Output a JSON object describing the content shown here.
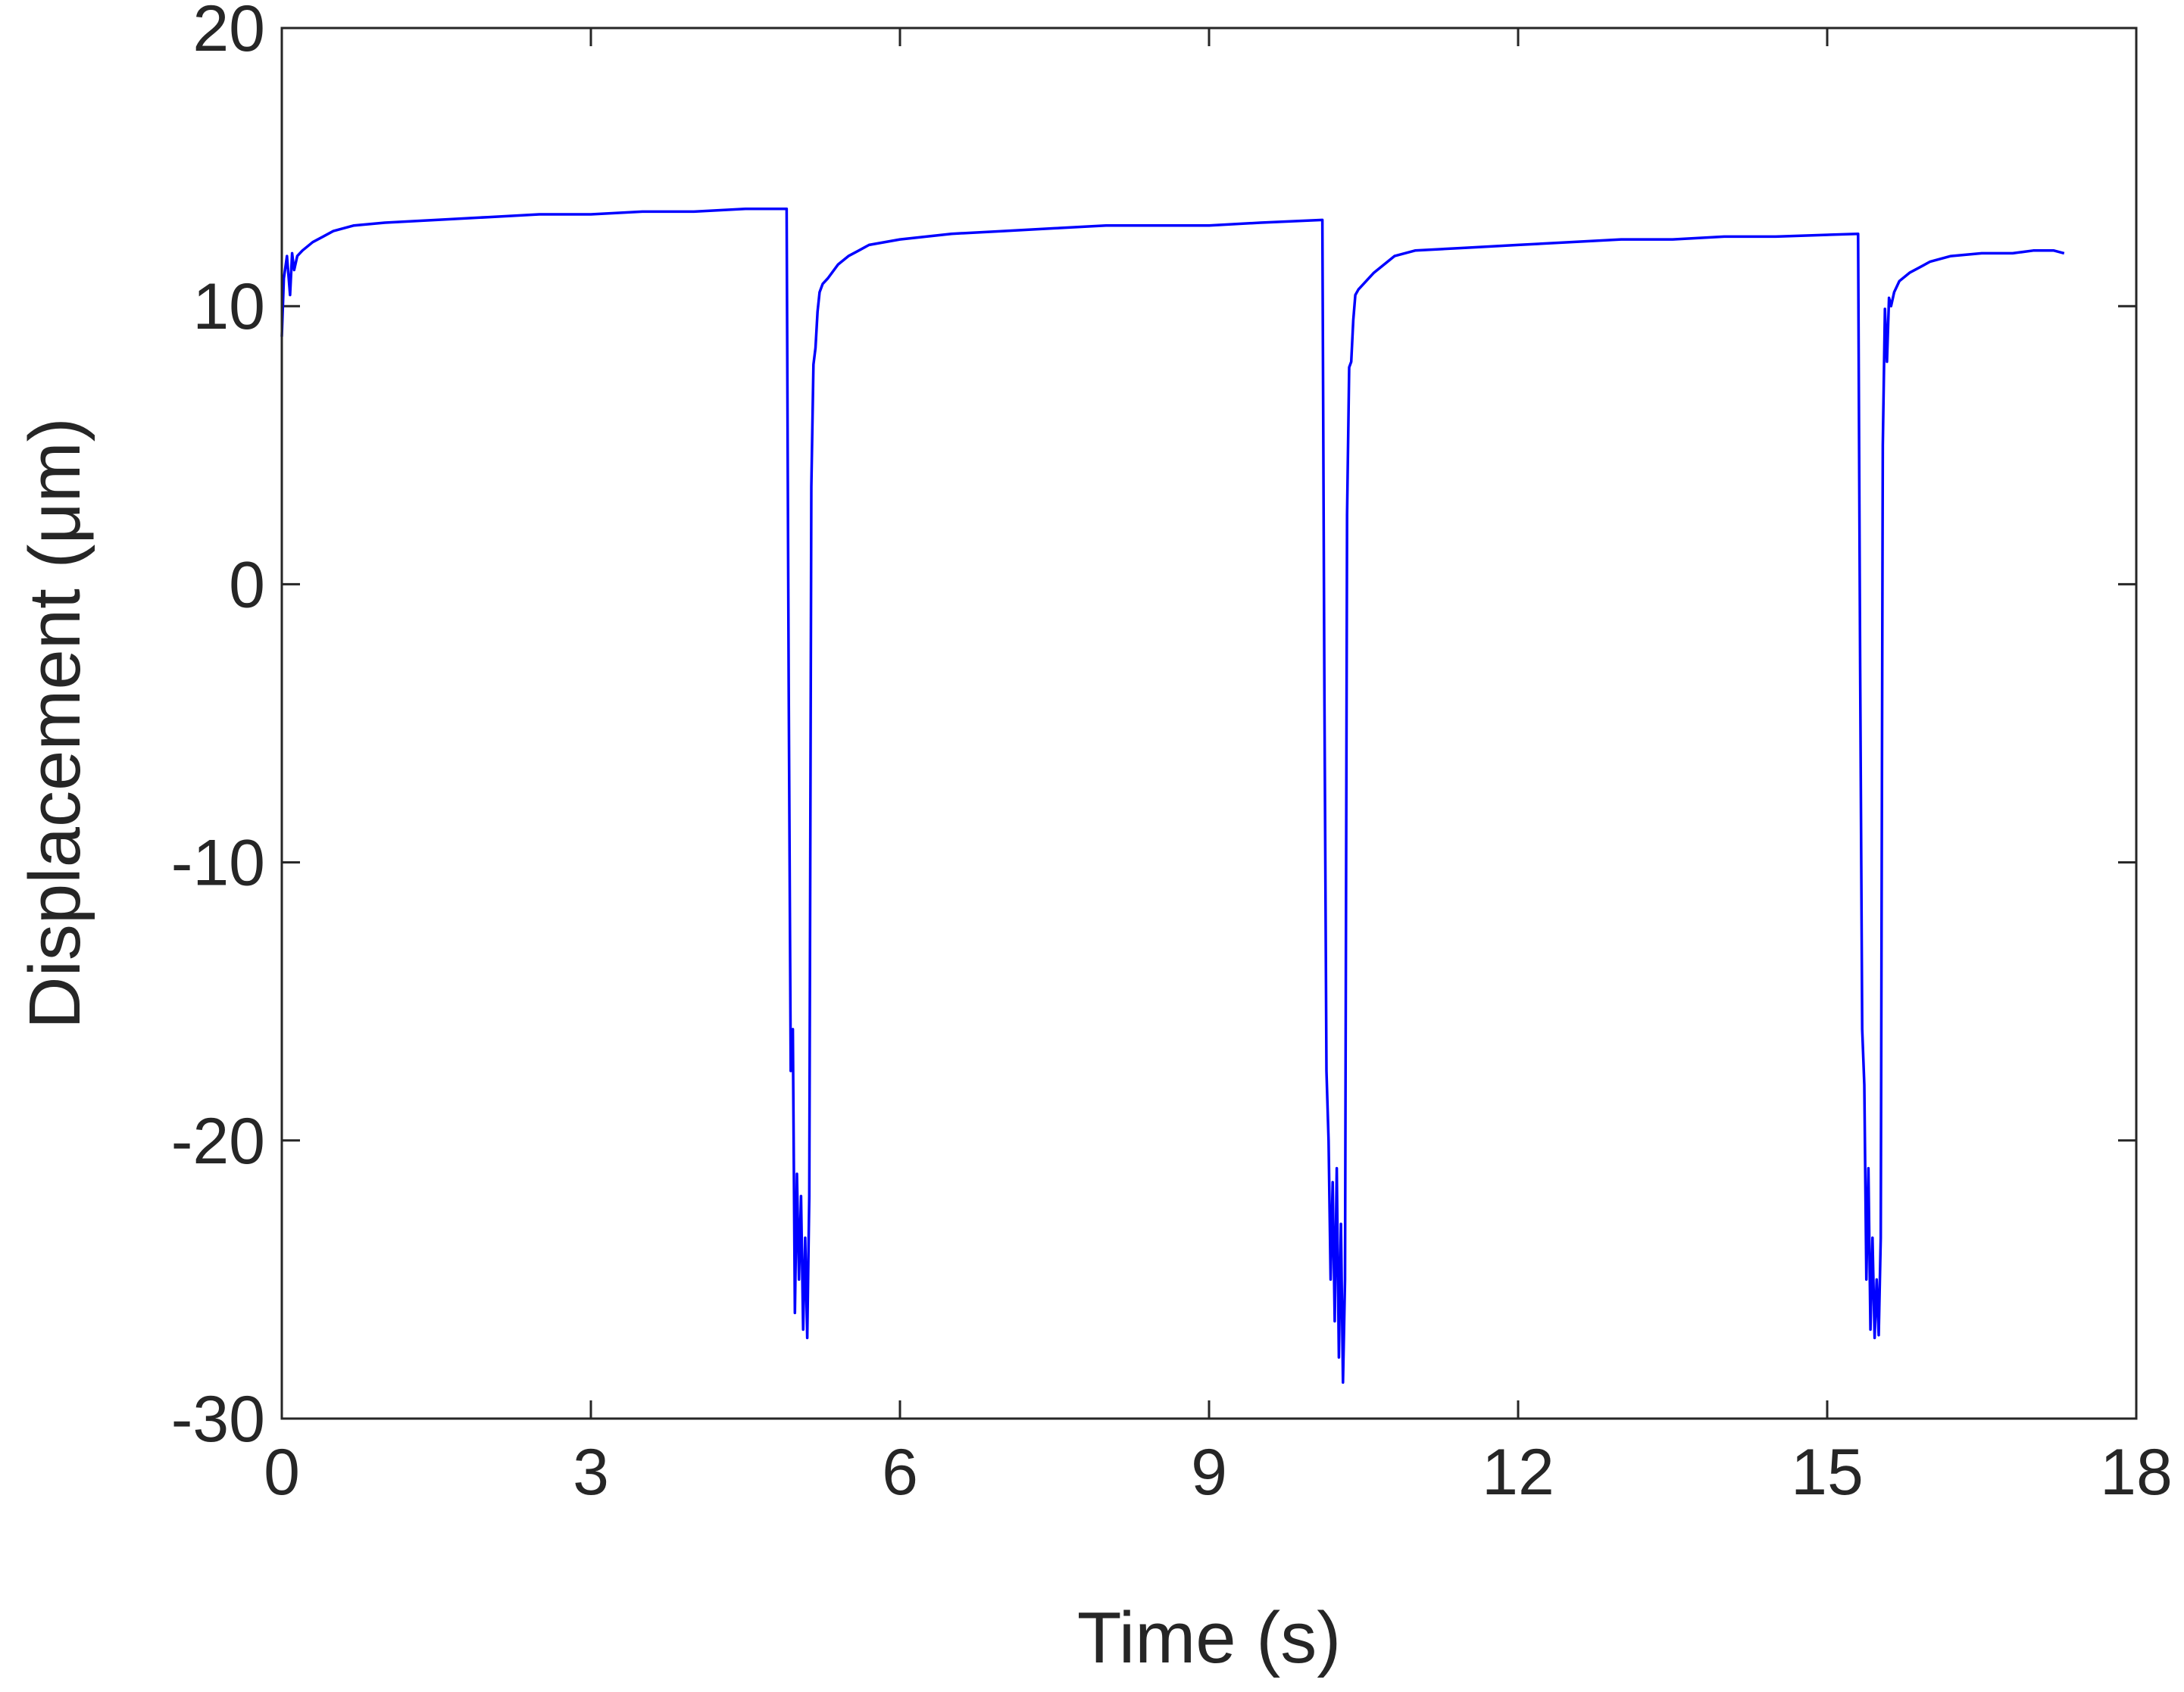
{
  "chart_data": {
    "type": "line",
    "title": "",
    "xlabel": "Time (s)",
    "ylabel": "Displacement (μm)",
    "xlim": [
      0,
      18
    ],
    "ylim": [
      -30,
      20
    ],
    "xticks": [
      0,
      3,
      6,
      9,
      12,
      15,
      18
    ],
    "yticks": [
      -30,
      -20,
      -10,
      0,
      10,
      20
    ],
    "xtick_labels": [
      "0",
      "3",
      "6",
      "9",
      "12",
      "15",
      "18"
    ],
    "ytick_labels": [
      "-30",
      "-20",
      "-10",
      "0",
      "10",
      "20"
    ],
    "grid": false,
    "legend": "none",
    "line_color": "#0000ff",
    "series": [
      {
        "x": [
          0.0,
          0.02,
          0.05,
          0.08,
          0.1,
          0.12,
          0.15,
          0.2,
          0.3,
          0.4,
          0.5,
          0.7,
          1.0,
          1.5,
          2.0,
          2.5,
          3.0,
          3.5,
          4.0,
          4.5,
          4.9,
          4.92,
          4.94,
          4.96,
          4.98,
          5.0,
          5.02,
          5.04,
          5.06,
          5.08,
          5.1,
          5.12,
          5.14,
          5.16,
          5.18,
          5.2,
          5.22,
          5.25,
          5.3,
          5.4,
          5.5,
          5.6,
          5.7,
          6.0,
          6.5,
          7.0,
          7.5,
          8.0,
          8.5,
          9.0,
          9.5,
          10.1,
          10.12,
          10.14,
          10.16,
          10.18,
          10.2,
          10.22,
          10.24,
          10.26,
          10.28,
          10.3,
          10.32,
          10.34,
          10.36,
          10.38,
          10.4,
          10.42,
          10.45,
          10.5,
          10.6,
          10.7,
          10.8,
          11.0,
          11.5,
          12.0,
          12.5,
          13.0,
          13.5,
          14.0,
          14.5,
          15.3,
          15.32,
          15.34,
          15.36,
          15.38,
          15.4,
          15.42,
          15.44,
          15.46,
          15.48,
          15.5,
          15.52,
          15.54,
          15.56,
          15.58,
          15.6,
          15.62,
          15.65,
          15.7,
          15.8,
          15.9,
          16.0,
          16.2,
          16.5,
          16.8,
          17.0,
          17.2,
          17.3
        ],
        "y": [
          8.9,
          11.0,
          11.8,
          10.4,
          11.9,
          11.3,
          11.8,
          12.0,
          12.3,
          12.5,
          12.7,
          12.9,
          13.0,
          13.1,
          13.2,
          13.3,
          13.3,
          13.4,
          13.4,
          13.5,
          13.5,
          -3.5,
          -17.5,
          -16.0,
          -26.2,
          -21.2,
          -25.0,
          -22.0,
          -26.8,
          -23.5,
          -27.1,
          -22.0,
          3.5,
          7.9,
          8.5,
          9.8,
          10.5,
          10.8,
          11.0,
          11.5,
          11.8,
          12.0,
          12.2,
          12.4,
          12.6,
          12.7,
          12.8,
          12.9,
          12.9,
          12.9,
          13.0,
          13.1,
          -4.0,
          -17.5,
          -20.0,
          -25.0,
          -21.5,
          -26.5,
          -21.0,
          -27.8,
          -23.0,
          -28.7,
          -25.0,
          2.5,
          7.8,
          8.0,
          9.5,
          10.4,
          10.6,
          10.8,
          11.2,
          11.5,
          11.8,
          12.0,
          12.1,
          12.2,
          12.3,
          12.4,
          12.4,
          12.5,
          12.5,
          12.6,
          -3.0,
          -16.0,
          -18.0,
          -25.0,
          -21.0,
          -26.8,
          -23.5,
          -27.1,
          -25.0,
          -27.0,
          -23.5,
          5.0,
          9.9,
          8.0,
          10.3,
          10.0,
          10.5,
          10.9,
          11.2,
          11.4,
          11.6,
          11.8,
          11.9,
          11.9,
          12.0,
          12.0,
          11.9
        ]
      }
    ]
  }
}
